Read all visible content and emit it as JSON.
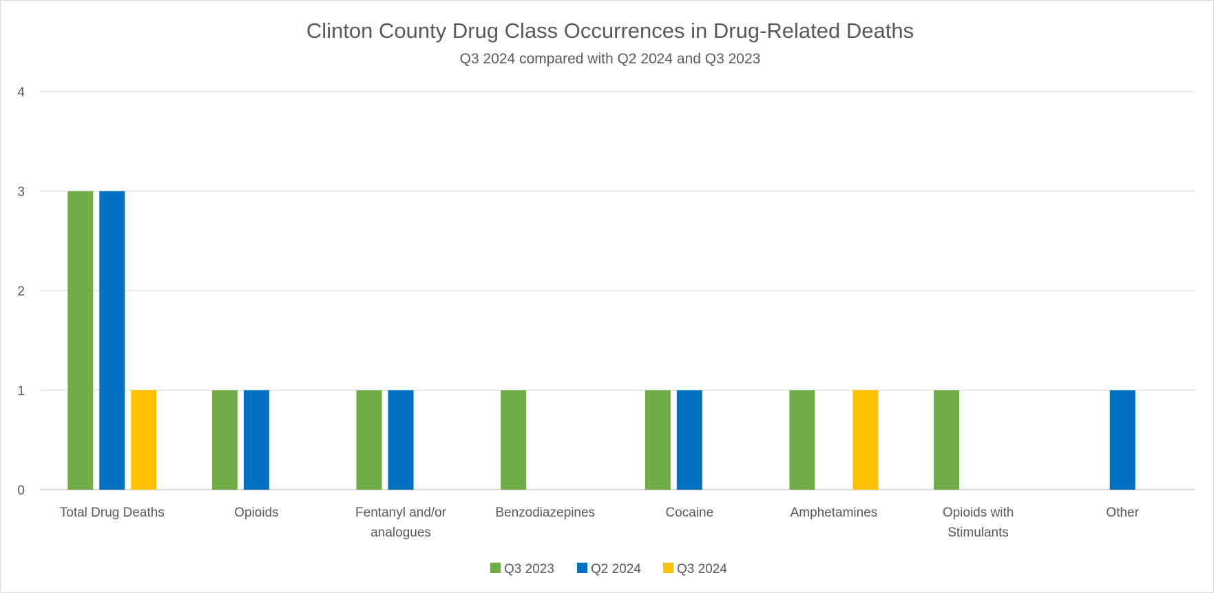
{
  "chart_data": {
    "type": "bar",
    "title": "Clinton County Drug Class Occurrences in Drug-Related Deaths",
    "subtitle": "Q3 2024 compared with Q2 2024 and Q3 2023",
    "xlabel": "",
    "ylabel": "",
    "ylim": [
      0,
      4
    ],
    "yticks": [
      "0",
      "1",
      "2",
      "3",
      "4"
    ],
    "grid": true,
    "legend_position": "bottom",
    "categories": [
      [
        "Total Drug Deaths"
      ],
      [
        "Opioids"
      ],
      [
        "Fentanyl and/or",
        "analogues"
      ],
      [
        "Benzodiazepines"
      ],
      [
        "Cocaine"
      ],
      [
        "Amphetamines"
      ],
      [
        "Opioids with",
        "Stimulants"
      ],
      [
        "Other"
      ]
    ],
    "series": [
      {
        "name": "Q3 2023",
        "color": "#70ad47",
        "values": [
          3,
          1,
          1,
          1,
          1,
          1,
          1,
          0
        ]
      },
      {
        "name": "Q2 2024",
        "color": "#0070c0",
        "values": [
          3,
          1,
          1,
          0,
          1,
          0,
          0,
          1
        ]
      },
      {
        "name": "Q3 2024",
        "color": "#ffc000",
        "values": [
          1,
          0,
          0,
          0,
          0,
          1,
          0,
          0
        ]
      }
    ]
  }
}
